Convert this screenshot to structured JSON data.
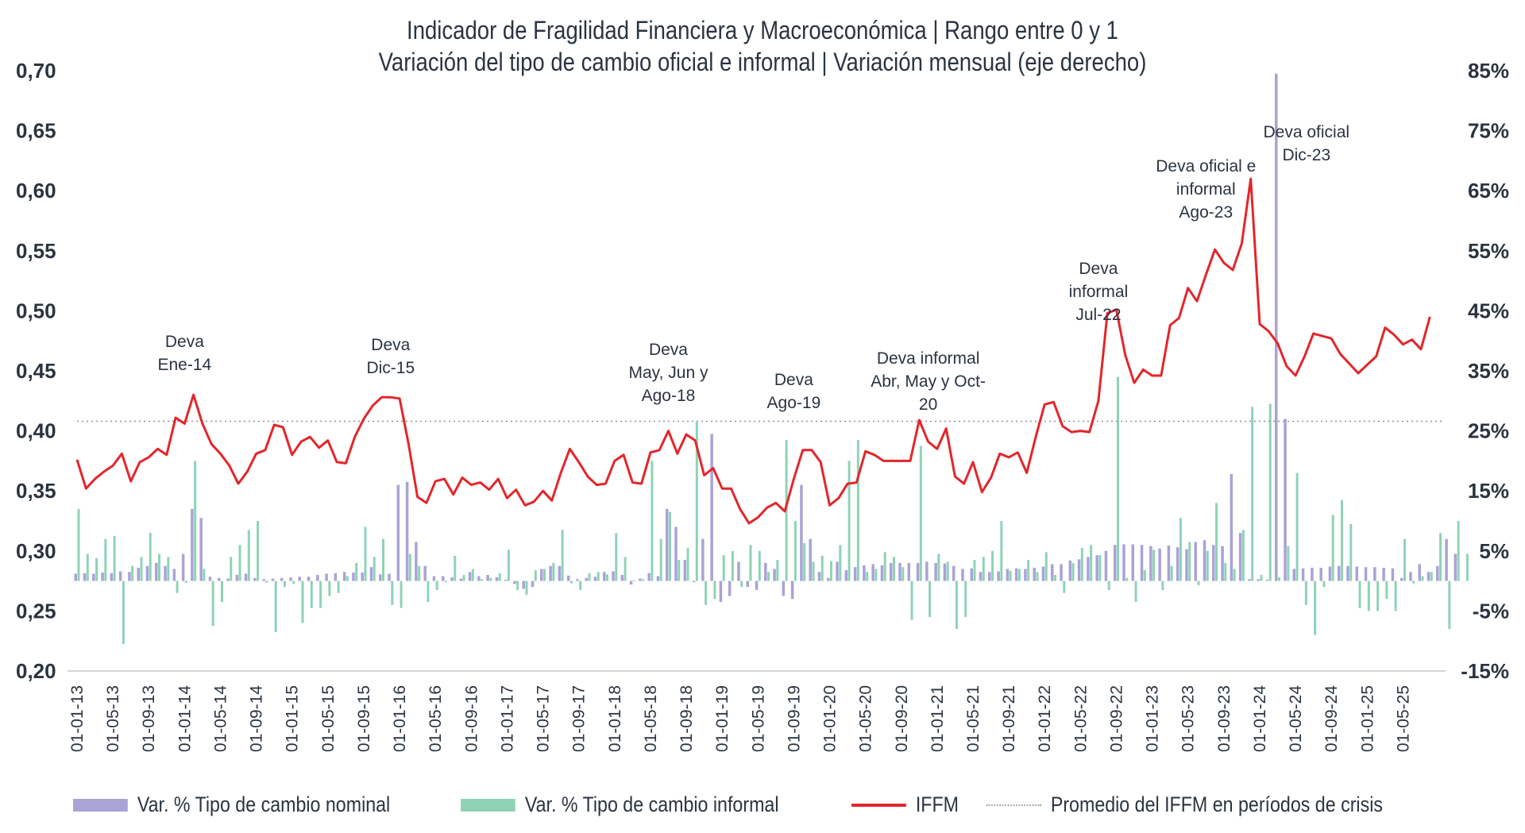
{
  "chart_data": {
    "type": "bar+line",
    "title": "Indicador de Fragilidad Financiera y Macroeconómica | Rango entre 0 y 1",
    "subtitle": "Variación del tipo de cambio oficial e informal | Variación mensual (eje derecho)",
    "left_axis": {
      "ylim": [
        0.2,
        0.7
      ],
      "ticks": [
        "0,70",
        "0,65",
        "0,60",
        "0,55",
        "0,50",
        "0,45",
        "0,40",
        "0,35",
        "0,30",
        "0,25",
        "0,20"
      ]
    },
    "right_axis": {
      "ylim": [
        -15,
        85
      ],
      "unit": "%",
      "ticks": [
        "85%",
        "75%",
        "65%",
        "55%",
        "45%",
        "35%",
        "25%",
        "15%",
        "5%",
        "-5%",
        "-15%"
      ]
    },
    "x_start": "2013-01",
    "x_tick_labels": [
      "01-01-13",
      "01-05-13",
      "01-09-13",
      "01-01-14",
      "01-05-14",
      "01-09-14",
      "01-01-15",
      "01-05-15",
      "01-09-15",
      "01-01-16",
      "01-05-16",
      "01-09-16",
      "01-01-17",
      "01-05-17",
      "01-09-17",
      "01-01-18",
      "01-05-18",
      "01-09-18",
      "01-01-19",
      "01-05-19",
      "01-09-19",
      "01-01-20",
      "01-05-20",
      "01-09-20",
      "01-01-21",
      "01-05-21",
      "01-09-21",
      "01-01-22",
      "01-05-22",
      "01-09-22",
      "01-01-23",
      "01-05-23",
      "01-09-23",
      "01-01-24",
      "01-05-24",
      "01-09-24",
      "01-01-25",
      "01-05-25"
    ],
    "crisis_average": 0.408,
    "series": [
      {
        "name": "IFFM",
        "axis": "left",
        "color": "#e3262b",
        "values": [
          0.376,
          0.352,
          0.36,
          0.366,
          0.371,
          0.381,
          0.358,
          0.374,
          0.378,
          0.385,
          0.38,
          0.411,
          0.406,
          0.43,
          0.406,
          0.389,
          0.381,
          0.371,
          0.356,
          0.366,
          0.381,
          0.384,
          0.405,
          0.403,
          0.38,
          0.391,
          0.395,
          0.386,
          0.392,
          0.374,
          0.373,
          0.395,
          0.41,
          0.421,
          0.428,
          0.428,
          0.427,
          0.389,
          0.345,
          0.34,
          0.358,
          0.36,
          0.347,
          0.361,
          0.355,
          0.357,
          0.351,
          0.36,
          0.344,
          0.351,
          0.338,
          0.341,
          0.35,
          0.342,
          0.365,
          0.385,
          0.374,
          0.362,
          0.355,
          0.356,
          0.375,
          0.38,
          0.357,
          0.356,
          0.382,
          0.384,
          0.4,
          0.381,
          0.397,
          0.392,
          0.363,
          0.369,
          0.352,
          0.352,
          0.335,
          0.323,
          0.328,
          0.336,
          0.34,
          0.333,
          0.36,
          0.384,
          0.384,
          0.374,
          0.338,
          0.344,
          0.356,
          0.357,
          0.383,
          0.38,
          0.375,
          0.375,
          0.375,
          0.375,
          0.409,
          0.391,
          0.385,
          0.402,
          0.362,
          0.356,
          0.374,
          0.349,
          0.361,
          0.381,
          0.378,
          0.382,
          0.365,
          0.395,
          0.422,
          0.424,
          0.404,
          0.399,
          0.4,
          0.399,
          0.425,
          0.498,
          0.501,
          0.463,
          0.44,
          0.451,
          0.446,
          0.446,
          0.488,
          0.494,
          0.519,
          0.508,
          0.53,
          0.551,
          0.54,
          0.534,
          0.556,
          0.61,
          0.489,
          0.483,
          0.473,
          0.454,
          0.446,
          0.462,
          0.481,
          0.479,
          0.477,
          0.464,
          0.456,
          0.448,
          0.455,
          0.462,
          0.486,
          0.48,
          0.472,
          0.476,
          0.468,
          0.495
        ]
      },
      {
        "name": "Var. % Tipo de cambio nominal",
        "axis": "right",
        "color": "#a9a3d6",
        "values": [
          1.2,
          1.3,
          1.2,
          1.4,
          1.3,
          1.6,
          1.5,
          2.2,
          2.5,
          3.0,
          2.5,
          2.0,
          4.5,
          12.0,
          10.5,
          0.7,
          0.5,
          0.4,
          1.0,
          1.2,
          0.5,
          0.3,
          0.4,
          0.5,
          0.6,
          0.7,
          0.7,
          1.0,
          1.2,
          1.3,
          1.5,
          1.4,
          1.4,
          2.3,
          1.1,
          1.2,
          16.0,
          16.5,
          6.5,
          2.5,
          0.8,
          0.8,
          0.6,
          0.4,
          1.5,
          0.8,
          1.0,
          0.6,
          0.2,
          -0.5,
          -1.3,
          -1.0,
          2.0,
          2.5,
          2.5,
          0.9,
          0.3,
          0.5,
          0.7,
          1.5,
          1.6,
          1.0,
          -0.6,
          0.4,
          1.3,
          0.8,
          12.0,
          9.0,
          3.5,
          -0.2,
          7.0,
          24.5,
          -3.5,
          -2.5,
          3.2,
          -1.0,
          -1.5,
          3.0,
          2.0,
          -2.5,
          -3.0,
          16.0,
          7.0,
          1.5,
          0.5,
          3.2,
          1.8,
          2.3,
          2.6,
          2.8,
          2.6,
          3.0,
          3.0,
          3.0,
          3.0,
          3.2,
          3.0,
          2.9,
          2.5,
          2.0,
          2.1,
          1.5,
          1.5,
          1.6,
          2.0,
          2.1,
          2.0,
          2.2,
          2.4,
          2.8,
          2.8,
          3.4,
          3.6,
          4.0,
          4.3,
          5.0,
          6.0,
          6.1,
          6.1,
          6.0,
          5.8,
          5.4,
          5.9,
          5.6,
          5.3,
          6.5,
          6.8,
          6.0,
          5.8,
          17.8,
          8.0,
          0.3,
          0.3,
          0.2,
          118.0,
          27.0,
          2.0,
          2.1,
          2.2,
          2.2,
          2.4,
          2.5,
          2.5,
          2.4,
          2.3,
          2.3,
          2.2,
          2.1,
          0.5,
          1.5,
          2.8,
          1.5,
          2.5,
          7.0,
          4.5
        ]
      },
      {
        "name": "Var. % Tipo de cambio informal",
        "axis": "right",
        "color": "#8fd3b4",
        "values": [
          12.0,
          4.5,
          3.8,
          7.0,
          7.5,
          -10.5,
          2.5,
          4.0,
          8.0,
          4.5,
          4.0,
          -2.0,
          -0.3,
          20.0,
          2.0,
          -7.5,
          -3.5,
          4.0,
          6.0,
          8.5,
          10.0,
          -0.3,
          -8.5,
          -1.0,
          -0.5,
          -7.0,
          -4.5,
          -4.5,
          -2.5,
          -2.0,
          0.8,
          3.0,
          9.0,
          4.0,
          7.0,
          -4.0,
          -4.5,
          4.5,
          2.5,
          -3.5,
          -1.5,
          -0.2,
          4.2,
          1.0,
          2.0,
          0.3,
          0.5,
          1.3,
          5.2,
          -1.5,
          -2.3,
          1.8,
          2.0,
          3.0,
          8.5,
          -0.4,
          -1.5,
          1.3,
          1.5,
          1.1,
          8.0,
          4.0,
          0.1,
          0.3,
          20.0,
          7.0,
          11.5,
          3.5,
          5.5,
          26.5,
          -4.0,
          -3.0,
          4.3,
          5.0,
          -1.0,
          6.0,
          5.0,
          1.5,
          3.5,
          23.5,
          10.0,
          6.3,
          3.2,
          4.2,
          3.3,
          6.0,
          20.0,
          23.5,
          1.5,
          2.0,
          4.8,
          4.0,
          2.3,
          -6.5,
          22.5,
          -6.0,
          4.5,
          3.2,
          -8.0,
          -6.0,
          3.5,
          4.0,
          5.0,
          10.0,
          1.7,
          2.0,
          3.5,
          1.5,
          4.8,
          1.0,
          -2.0,
          3.0,
          5.5,
          6.0,
          4.3,
          -1.5,
          34.0,
          0.5,
          -3.5,
          1.8,
          5.2,
          -1.5,
          2.5,
          10.5,
          6.5,
          -0.7,
          5.0,
          13.0,
          3.0,
          2.0,
          8.5,
          29.0,
          1.0,
          29.5,
          0.6,
          5.8,
          18.0,
          -4.0,
          -9.0,
          -1.0,
          11.0,
          13.5,
          9.5,
          -4.5,
          -5.0,
          -5.0,
          -3.0,
          -5.0,
          7.0,
          -0.4,
          0.8,
          1.5,
          8.0,
          -8.0,
          10.0,
          4.5
        ]
      }
    ],
    "annotations": [
      {
        "lines": [
          "Deva",
          "Ene-14"
        ],
        "month_index": 12
      },
      {
        "lines": [
          "Deva",
          "Dic-15"
        ],
        "month_index": 35
      },
      {
        "lines": [
          "Deva",
          "May, Jun y",
          "Ago-18"
        ],
        "month_index": 66
      },
      {
        "lines": [
          "Deva",
          "Ago-19"
        ],
        "month_index": 80
      },
      {
        "lines": [
          "Deva informal",
          "Abr, May y Oct-",
          "20"
        ],
        "month_index": 95
      },
      {
        "lines": [
          "Deva",
          "informal",
          "Jul-22"
        ],
        "month_index": 114
      },
      {
        "lines": [
          "Deva oficial e",
          "informal",
          "Ago-23"
        ],
        "month_index": 126
      },
      {
        "lines": [
          "Deva oficial",
          "Dic-23"
        ],
        "month_index": 135
      }
    ],
    "legend": [
      {
        "label": "Var. % Tipo de cambio nominal",
        "kind": "bar",
        "color": "#a9a3d6"
      },
      {
        "label": "Var. % Tipo de cambio informal",
        "kind": "bar",
        "color": "#8fd3b4"
      },
      {
        "label": "IFFM",
        "kind": "line",
        "color": "#e3262b"
      },
      {
        "label": "Promedio del IFFM en períodos de crisis",
        "kind": "dotted",
        "color": "#9aa0a6"
      }
    ],
    "legend_position": "bottom",
    "grid": false
  }
}
